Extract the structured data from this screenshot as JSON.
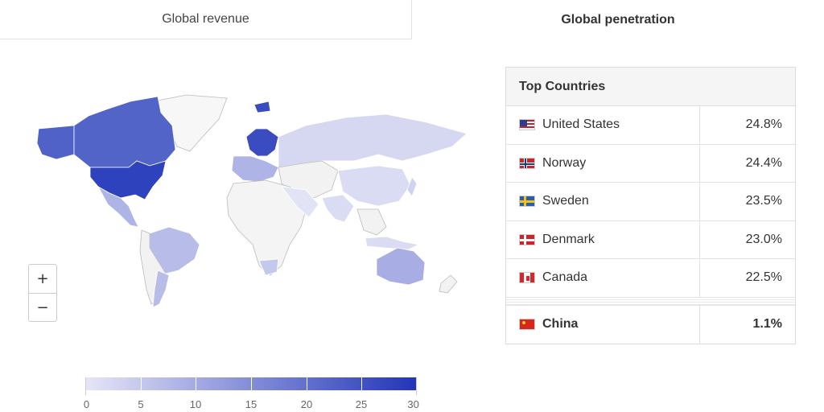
{
  "tabs": [
    {
      "label": "Global revenue",
      "active": false
    },
    {
      "label": "Global penetration",
      "active": true
    }
  ],
  "zoom": {
    "in_label": "+",
    "out_label": "−"
  },
  "legend": {
    "ticks": [
      "0",
      "5",
      "10",
      "15",
      "20",
      "25",
      "30"
    ],
    "min": 0,
    "max": 30,
    "color_low": "#e6e6f7",
    "color_high": "#2135b8"
  },
  "table": {
    "header": "Top Countries",
    "rows": [
      {
        "country": "United States",
        "value": "24.8%",
        "flag": "us-flag"
      },
      {
        "country": "Norway",
        "value": "24.4%",
        "flag": "norway-flag"
      },
      {
        "country": "Sweden",
        "value": "23.5%",
        "flag": "sweden-flag"
      },
      {
        "country": "Denmark",
        "value": "23.0%",
        "flag": "denmark-flag"
      },
      {
        "country": "Canada",
        "value": "22.5%",
        "flag": "canada-flag"
      }
    ],
    "highlight": {
      "country": "China",
      "value": "1.1%",
      "flag": "china-flag"
    }
  }
}
